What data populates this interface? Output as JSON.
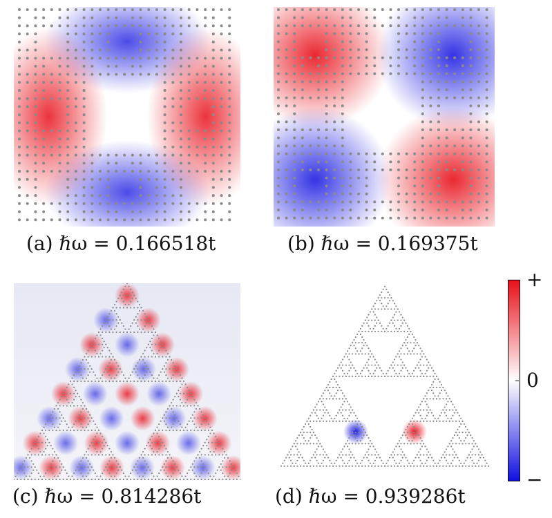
{
  "panels": [
    {
      "id": "a",
      "caption": "(a) ℏω = 0.166518t"
    },
    {
      "id": "b",
      "caption": "(b) ℏω = 0.169375t"
    },
    {
      "id": "c",
      "caption": "(c) ℏω = 0.814286t"
    },
    {
      "id": "d",
      "caption": "(d) ℏω = 0.939286t"
    }
  ],
  "colorbar": {
    "top_label": "+",
    "mid_label": "0",
    "bottom_label": "−",
    "colors": {
      "positive": "#e8101a",
      "zero": "#ffffff",
      "negative": "#1010e0"
    }
  },
  "colors": {
    "lattice_dot": "#8a8a8a"
  }
}
